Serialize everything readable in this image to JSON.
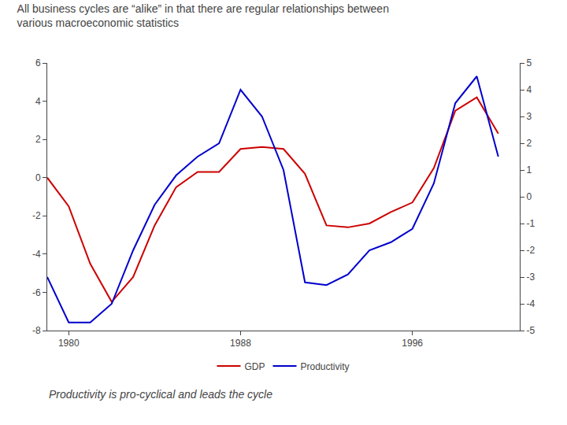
{
  "chart_data": {
    "type": "line",
    "title": "All business cycles are “alike” in that there are regular relationships between\nvarious macroeconomic statistics",
    "subtitle": "Productivity is pro-cyclical and leads the cycle",
    "x": [
      1979,
      1980,
      1981,
      1982,
      1983,
      1984,
      1985,
      1986,
      1987,
      1988,
      1989,
      1990,
      1991,
      1992,
      1993,
      1994,
      1995,
      1996,
      1997,
      1998,
      1999,
      2000
    ],
    "series": [
      {
        "name": "GDP",
        "color": "#cc0000",
        "axis": "y",
        "values": [
          0.0,
          -1.5,
          -4.5,
          -6.5,
          -5.2,
          -2.5,
          -0.5,
          0.3,
          0.3,
          1.5,
          1.6,
          1.5,
          0.2,
          -2.5,
          -2.6,
          -2.4,
          -1.8,
          -1.3,
          0.5,
          3.5,
          4.2,
          2.3
        ]
      },
      {
        "name": "Productivity",
        "color": "#0000cc",
        "axis": "y2",
        "values": [
          -3.0,
          -4.7,
          -4.7,
          -4.0,
          -2.0,
          -0.3,
          0.8,
          1.5,
          2.0,
          4.0,
          3.0,
          1.0,
          -3.2,
          -3.3,
          -2.9,
          -2.0,
          -1.7,
          -1.2,
          0.5,
          3.5,
          4.5,
          1.5
        ]
      }
    ],
    "xlim": [
      1979,
      2001
    ],
    "xticks": [
      1980,
      1988,
      1996
    ],
    "ylim": [
      -8,
      6
    ],
    "yticks": [
      -8,
      -6,
      -4,
      -2,
      0,
      2,
      4,
      6
    ],
    "y2lim": [
      -5,
      5
    ],
    "y2ticks": [
      -5,
      -4,
      -3,
      -2,
      -1,
      0,
      1,
      2,
      3,
      4,
      5
    ],
    "grid": false,
    "legend": "bottom"
  }
}
